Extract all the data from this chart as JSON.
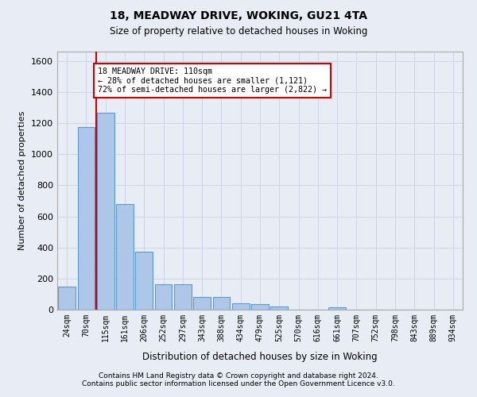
{
  "title1": "18, MEADWAY DRIVE, WOKING, GU21 4TA",
  "title2": "Size of property relative to detached houses in Woking",
  "xlabel": "Distribution of detached houses by size in Woking",
  "ylabel": "Number of detached properties",
  "categories": [
    "24sqm",
    "70sqm",
    "115sqm",
    "161sqm",
    "206sqm",
    "252sqm",
    "297sqm",
    "343sqm",
    "388sqm",
    "434sqm",
    "479sqm",
    "525sqm",
    "570sqm",
    "616sqm",
    "661sqm",
    "707sqm",
    "752sqm",
    "798sqm",
    "843sqm",
    "889sqm",
    "934sqm"
  ],
  "values": [
    148,
    1175,
    1265,
    680,
    375,
    165,
    165,
    80,
    80,
    40,
    35,
    22,
    0,
    0,
    15,
    0,
    0,
    0,
    0,
    0,
    0
  ],
  "bar_color": "#aec6e8",
  "bar_edge_color": "#5b9bd5",
  "marker_color": "#cc0000",
  "annotation_text": "18 MEADWAY DRIVE: 110sqm\n← 28% of detached houses are smaller (1,121)\n72% of semi-detached houses are larger (2,822) →",
  "annotation_box_color": "#ffffff",
  "annotation_box_edge": "#cc0000",
  "ylim": [
    0,
    1660
  ],
  "yticks": [
    0,
    200,
    400,
    600,
    800,
    1000,
    1200,
    1400,
    1600
  ],
  "grid_color": "#d0d8e8",
  "bg_color": "#e8edf5",
  "footer1": "Contains HM Land Registry data © Crown copyright and database right 2024.",
  "footer2": "Contains public sector information licensed under the Open Government Licence v3.0."
}
